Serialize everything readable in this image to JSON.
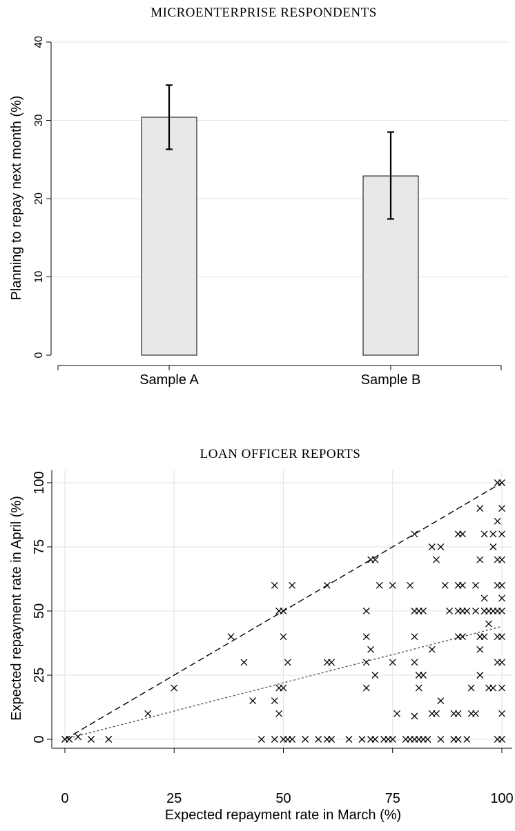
{
  "chart_data": [
    {
      "type": "bar",
      "title": "MICROENTERPRISE RESPONDENTS",
      "xlabel": "",
      "ylabel": "Planning to repay next month (%)",
      "categories": [
        "Sample A",
        "Sample B"
      ],
      "values": [
        30.4,
        22.9
      ],
      "error_bars": [
        {
          "low": 26.3,
          "high": 34.5
        },
        {
          "low": 17.4,
          "high": 28.5
        }
      ],
      "ylim": [
        0,
        40
      ],
      "yticks": [
        0,
        10,
        20,
        30,
        40
      ],
      "grid": true,
      "bar_color": "#e8e8e8"
    },
    {
      "type": "scatter",
      "title": "LOAN OFFICER REPORTS",
      "xlabel": "Expected repayment rate in March (%)",
      "ylabel": "Expected repayment rate in April (%)",
      "xlim": [
        0,
        100
      ],
      "ylim": [
        0,
        100
      ],
      "xticks": [
        0,
        25,
        50,
        75,
        100
      ],
      "yticks": [
        0,
        25,
        50,
        75,
        100
      ],
      "grid": true,
      "marker": "x",
      "reference_lines": [
        {
          "style": "dashed",
          "points": [
            [
              0,
              0
            ],
            [
              100,
              100
            ]
          ]
        },
        {
          "style": "dotted",
          "points": [
            [
              0,
              0
            ],
            [
              100,
              44
            ]
          ]
        }
      ],
      "points": [
        [
          0,
          0
        ],
        [
          1,
          0
        ],
        [
          3,
          1
        ],
        [
          6,
          0
        ],
        [
          10,
          0
        ],
        [
          19,
          10
        ],
        [
          25,
          20
        ],
        [
          38,
          40
        ],
        [
          41,
          30
        ],
        [
          43,
          15
        ],
        [
          45,
          0
        ],
        [
          48,
          60
        ],
        [
          48,
          15
        ],
        [
          49,
          10
        ],
        [
          49,
          20
        ],
        [
          49,
          50
        ],
        [
          50,
          50
        ],
        [
          50,
          20
        ],
        [
          50,
          40
        ],
        [
          48,
          0
        ],
        [
          50,
          0
        ],
        [
          51,
          0
        ],
        [
          51,
          30
        ],
        [
          52,
          0
        ],
        [
          52,
          60
        ],
        [
          55,
          0
        ],
        [
          58,
          0
        ],
        [
          60,
          0
        ],
        [
          60,
          60
        ],
        [
          60,
          30
        ],
        [
          61,
          30
        ],
        [
          61,
          0
        ],
        [
          65,
          0
        ],
        [
          68,
          0
        ],
        [
          69,
          50
        ],
        [
          69,
          20
        ],
        [
          69,
          30
        ],
        [
          69,
          40
        ],
        [
          70,
          35
        ],
        [
          70,
          0
        ],
        [
          70,
          70
        ],
        [
          71,
          25
        ],
        [
          71,
          0
        ],
        [
          71,
          70
        ],
        [
          72,
          60
        ],
        [
          73,
          0
        ],
        [
          74,
          0
        ],
        [
          75,
          60
        ],
        [
          75,
          30
        ],
        [
          75,
          0
        ],
        [
          76,
          10
        ],
        [
          78,
          0
        ],
        [
          79,
          60
        ],
        [
          79,
          0
        ],
        [
          80,
          40
        ],
        [
          80,
          30
        ],
        [
          80,
          80
        ],
        [
          80,
          50
        ],
        [
          80,
          0
        ],
        [
          80,
          9
        ],
        [
          81,
          25
        ],
        [
          81,
          50
        ],
        [
          81,
          20
        ],
        [
          81,
          0
        ],
        [
          82,
          0
        ],
        [
          82,
          25
        ],
        [
          82,
          50
        ],
        [
          83,
          0
        ],
        [
          84,
          75
        ],
        [
          84,
          35
        ],
        [
          84,
          10
        ],
        [
          85,
          70
        ],
        [
          85,
          10
        ],
        [
          86,
          75
        ],
        [
          86,
          15
        ],
        [
          86,
          0
        ],
        [
          87,
          60
        ],
        [
          88,
          50
        ],
        [
          89,
          10
        ],
        [
          89,
          0
        ],
        [
          90,
          10
        ],
        [
          90,
          40
        ],
        [
          90,
          60
        ],
        [
          90,
          50
        ],
        [
          90,
          80
        ],
        [
          90,
          0
        ],
        [
          91,
          50
        ],
        [
          91,
          80
        ],
        [
          91,
          40
        ],
        [
          91,
          60
        ],
        [
          92,
          50
        ],
        [
          92,
          0
        ],
        [
          93,
          10
        ],
        [
          93,
          20
        ],
        [
          94,
          60
        ],
        [
          94,
          10
        ],
        [
          94,
          50
        ],
        [
          95,
          70
        ],
        [
          95,
          90
        ],
        [
          95,
          25
        ],
        [
          95,
          35
        ],
        [
          95,
          40
        ],
        [
          96,
          80
        ],
        [
          96,
          50
        ],
        [
          96,
          55
        ],
        [
          96,
          40
        ],
        [
          97,
          50
        ],
        [
          97,
          20
        ],
        [
          97,
          45
        ],
        [
          98,
          80
        ],
        [
          98,
          75
        ],
        [
          98,
          50
        ],
        [
          98,
          20
        ],
        [
          99,
          70
        ],
        [
          99,
          85
        ],
        [
          99,
          60
        ],
        [
          99,
          40
        ],
        [
          99,
          50
        ],
        [
          99,
          0
        ],
        [
          100,
          100
        ],
        [
          100,
          90
        ],
        [
          100,
          80
        ],
        [
          100,
          70
        ],
        [
          100,
          55
        ],
        [
          100,
          50
        ],
        [
          100,
          40
        ],
        [
          100,
          30
        ],
        [
          100,
          20
        ],
        [
          100,
          10
        ],
        [
          100,
          0
        ],
        [
          100,
          60
        ],
        [
          99,
          100
        ],
        [
          99,
          30
        ]
      ]
    }
  ]
}
